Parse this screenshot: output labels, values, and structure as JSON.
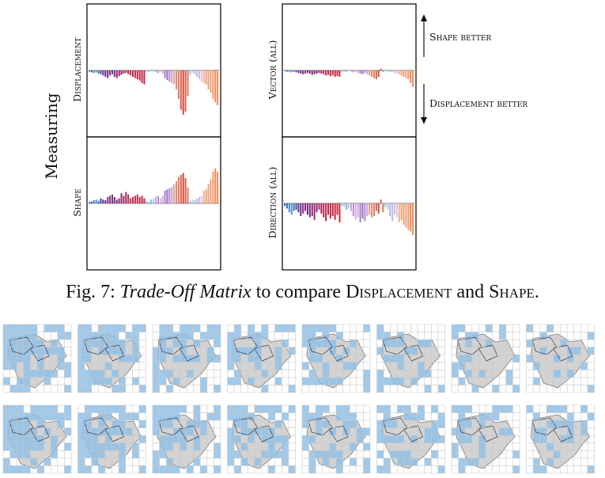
{
  "figure": {
    "y_group_label": "Measuring",
    "row_labels": [
      "Displacement",
      "Shape",
      "Vector (all)",
      "Direction (all)"
    ],
    "arrow_up_label": "Shape better",
    "arrow_down_label": "Displacement better"
  },
  "caption": {
    "label": "Fig. 7:",
    "italic": "Trade-Off Matrix",
    "middle": " to compare ",
    "term1": "Displacement",
    "and": " and ",
    "term2": "Shape",
    "end": "."
  },
  "chart_data": [
    {
      "type": "bar",
      "panel": "Displacement",
      "note": "values: negative = downward bars (Displacement better), positive = upward (Shape better); relative units",
      "values": [
        -0.02,
        -0.03,
        -0.04,
        -0.03,
        -0.05,
        -0.06,
        -0.08,
        -0.1,
        -0.12,
        -0.08,
        -0.06,
        -0.1,
        -0.12,
        -0.09,
        -0.07,
        -0.05,
        -0.04,
        -0.06,
        -0.08,
        -0.1,
        -0.12,
        -0.14,
        -0.16,
        -0.2,
        -0.22,
        -0.02,
        -0.03,
        -0.01,
        -0.02,
        -0.03,
        -0.04,
        -0.02,
        -0.05,
        -0.12,
        -0.15,
        -0.18,
        -0.2,
        -0.22,
        -0.3,
        -0.45,
        -0.62,
        -0.7,
        -0.65,
        -0.4,
        -0.08,
        -0.04,
        -0.06,
        -0.1,
        -0.14,
        -0.18,
        -0.2,
        -0.22,
        -0.3,
        -0.35,
        -0.45,
        -0.5,
        -0.55
      ],
      "colors": [
        "#2b6cb3",
        "#2b6cb3",
        "#4a86c7",
        "#5b8fcf",
        "#3a72b8",
        "#4a4aa8",
        "#5e3c99",
        "#7a2e8a",
        "#7a2e8a",
        "#8e2b7a",
        "#6a2f8c",
        "#7a2e8a",
        "#8e2b7a",
        "#9e2a6a",
        "#8e2b7a",
        "#b02a5e",
        "#a12a60",
        "#b62a55",
        "#c42a4a",
        "#b82a55",
        "#c42a4a",
        "#c42a4a",
        "#d02a40",
        "#c42a4a",
        "#d02a40",
        "#8fc4dd",
        "#a6cbe0",
        "#7fb8d8",
        "#b3d3e6",
        "#c6a8d8",
        "#b38fd0",
        "#d6b3e0",
        "#cfa9dc",
        "#a882c9",
        "#9b6fc2",
        "#b88ccf",
        "#c9a1db",
        "#d9a48e",
        "#e38c70",
        "#e07a60",
        "#d9614d",
        "#c94a3d",
        "#d9614d",
        "#e07a60",
        "#a6cbe0",
        "#b3d3e6",
        "#9fc5e0",
        "#c6b6e0",
        "#d2b8e2",
        "#dcc4ea",
        "#e9b3a0",
        "#f0a070",
        "#f0a070",
        "#eea080",
        "#f19a6a",
        "#f08a56",
        "#f28a56"
      ]
    },
    {
      "type": "bar",
      "panel": "Shape",
      "values": [
        0.02,
        0.03,
        0.05,
        0.06,
        0.04,
        0.08,
        0.06,
        0.05,
        0.1,
        0.12,
        0.14,
        0.1,
        0.06,
        0.08,
        0.16,
        0.12,
        0.18,
        0.14,
        0.08,
        0.1,
        0.12,
        0.14,
        0.1,
        0.12,
        0.08,
        0.04,
        0.03,
        0.06,
        0.08,
        0.1,
        0.12,
        0.08,
        0.12,
        0.2,
        0.22,
        0.24,
        0.26,
        0.3,
        0.35,
        0.42,
        0.45,
        0.48,
        0.4,
        0.25,
        0.04,
        0.06,
        0.05,
        0.08,
        0.1,
        0.12,
        0.2,
        0.22,
        0.3,
        0.38,
        0.5,
        0.55,
        0.5
      ],
      "colors": [
        "#2b6cb3",
        "#2b6cb3",
        "#4a86c7",
        "#5b8fcf",
        "#3a72b8",
        "#4a4aa8",
        "#5e3c99",
        "#7a2e8a",
        "#7a2e8a",
        "#8e2b7a",
        "#6a2f8c",
        "#7a2e8a",
        "#8e2b7a",
        "#9e2a6a",
        "#8e2b7a",
        "#b02a5e",
        "#a12a60",
        "#b62a55",
        "#c42a4a",
        "#b82a55",
        "#c42a4a",
        "#c42a4a",
        "#d02a40",
        "#c42a4a",
        "#d02a40",
        "#8fc4dd",
        "#a6cbe0",
        "#7fb8d8",
        "#b3d3e6",
        "#c6a8d8",
        "#b38fd0",
        "#d6b3e0",
        "#cfa9dc",
        "#a882c9",
        "#9b6fc2",
        "#b88ccf",
        "#c9a1db",
        "#d9a48e",
        "#e38c70",
        "#e07a60",
        "#d9614d",
        "#c94a3d",
        "#d9614d",
        "#e07a60",
        "#a6cbe0",
        "#b3d3e6",
        "#9fc5e0",
        "#c6b6e0",
        "#d2b8e2",
        "#dcc4ea",
        "#e9b3a0",
        "#f0a070",
        "#f0a070",
        "#eea080",
        "#f19a6a",
        "#f08a56",
        "#f28a56"
      ]
    },
    {
      "type": "bar",
      "panel": "Vector (all)",
      "values": [
        -0.01,
        -0.02,
        -0.02,
        -0.03,
        -0.02,
        -0.03,
        -0.04,
        -0.05,
        -0.06,
        -0.05,
        -0.04,
        -0.05,
        -0.07,
        -0.06,
        -0.05,
        -0.04,
        -0.05,
        -0.06,
        -0.08,
        -0.07,
        -0.09,
        -0.08,
        -0.1,
        -0.09,
        -0.1,
        -0.02,
        -0.03,
        -0.02,
        -0.01,
        -0.02,
        -0.03,
        -0.02,
        -0.04,
        -0.05,
        -0.06,
        -0.04,
        -0.06,
        -0.08,
        -0.1,
        -0.12,
        -0.14,
        -0.1,
        0.03,
        -0.02,
        -0.01,
        -0.02,
        -0.03,
        -0.02,
        -0.04,
        -0.05,
        -0.06,
        -0.08,
        -0.1,
        -0.12,
        -0.14,
        -0.2,
        -0.26
      ],
      "colors": [
        "#2b6cb3",
        "#2b6cb3",
        "#4a86c7",
        "#5b8fcf",
        "#3a72b8",
        "#4a4aa8",
        "#5e3c99",
        "#7a2e8a",
        "#7a2e8a",
        "#8e2b7a",
        "#6a2f8c",
        "#7a2e8a",
        "#8e2b7a",
        "#9e2a6a",
        "#8e2b7a",
        "#b02a5e",
        "#a12a60",
        "#b62a55",
        "#c42a4a",
        "#b82a55",
        "#c42a4a",
        "#c42a4a",
        "#d02a40",
        "#c42a4a",
        "#d02a40",
        "#8fc4dd",
        "#a6cbe0",
        "#7fb8d8",
        "#b3d3e6",
        "#c6a8d8",
        "#b38fd0",
        "#d6b3e0",
        "#cfa9dc",
        "#a882c9",
        "#9b6fc2",
        "#b88ccf",
        "#c9a1db",
        "#d9a48e",
        "#e38c70",
        "#e07a60",
        "#d9614d",
        "#c94a3d",
        "#d9614d",
        "#e07a60",
        "#a6cbe0",
        "#b3d3e6",
        "#9fc5e0",
        "#c6b6e0",
        "#d2b8e2",
        "#dcc4ea",
        "#e9b3a0",
        "#f0a070",
        "#f0a070",
        "#eea080",
        "#f19a6a",
        "#f08a56",
        "#f28a56"
      ]
    },
    {
      "type": "bar",
      "panel": "Direction (all)",
      "values": [
        -0.04,
        -0.08,
        -0.14,
        -0.18,
        -0.12,
        -0.1,
        -0.14,
        -0.2,
        -0.16,
        -0.12,
        -0.18,
        -0.22,
        -0.2,
        -0.26,
        -0.14,
        -0.1,
        -0.16,
        -0.22,
        -0.28,
        -0.18,
        -0.24,
        -0.2,
        -0.26,
        -0.18,
        -0.3,
        -0.04,
        -0.06,
        -0.1,
        -0.08,
        -0.12,
        -0.2,
        -0.26,
        -0.22,
        -0.3,
        -0.24,
        -0.28,
        -0.2,
        -0.18,
        -0.22,
        -0.2,
        -0.12,
        -0.16,
        0.06,
        -0.14,
        -0.06,
        -0.1,
        -0.2,
        -0.28,
        -0.18,
        -0.22,
        -0.3,
        -0.26,
        -0.34,
        -0.38,
        -0.42,
        -0.44,
        -0.5
      ],
      "colors": [
        "#2b6cb3",
        "#2b6cb3",
        "#4a86c7",
        "#5b8fcf",
        "#3a72b8",
        "#4a4aa8",
        "#5e3c99",
        "#7a2e8a",
        "#7a2e8a",
        "#8e2b7a",
        "#6a2f8c",
        "#7a2e8a",
        "#8e2b7a",
        "#9e2a6a",
        "#8e2b7a",
        "#b02a5e",
        "#a12a60",
        "#b62a55",
        "#c42a4a",
        "#b82a55",
        "#c42a4a",
        "#c42a4a",
        "#d02a40",
        "#c42a4a",
        "#d02a40",
        "#8fc4dd",
        "#a6cbe0",
        "#7fb8d8",
        "#b3d3e6",
        "#c6a8d8",
        "#b38fd0",
        "#d6b3e0",
        "#cfa9dc",
        "#a882c9",
        "#9b6fc2",
        "#b88ccf",
        "#c9a1db",
        "#d9a48e",
        "#e38c70",
        "#e07a60",
        "#d9614d",
        "#c94a3d",
        "#d9614d",
        "#e07a60",
        "#a6cbe0",
        "#b3d3e6",
        "#9fc5e0",
        "#c6b6e0",
        "#d2b8e2",
        "#dcc4ea",
        "#e9b3a0",
        "#f0a070",
        "#f0a070",
        "#eea080",
        "#f19a6a",
        "#f08a56",
        "#f28a56"
      ]
    }
  ],
  "grid_maps": {
    "rows": 2,
    "columns": 8,
    "fill_color": "#8fbfe6",
    "shape_color": "#d3d3d3",
    "coverage": [
      [
        1.0,
        0.85,
        0.75,
        0.65,
        0.55,
        0.45,
        0.35,
        0.3
      ],
      [
        0.95,
        0.85,
        0.75,
        0.7,
        0.62,
        0.55,
        0.5,
        0.45
      ]
    ]
  }
}
